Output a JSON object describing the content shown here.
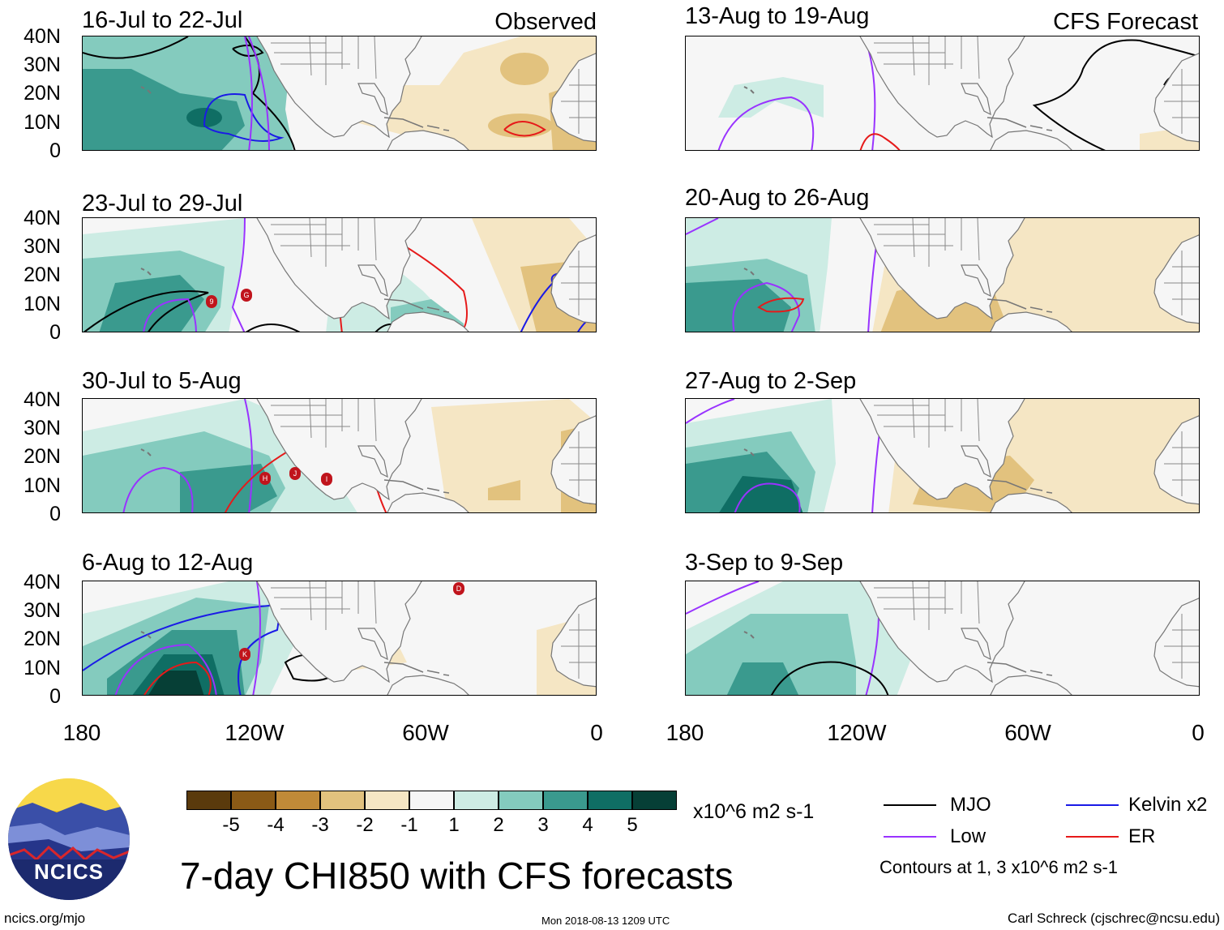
{
  "panels_left": [
    {
      "title": "16-Jul to 22-Jul",
      "corner": "Observed",
      "storms": []
    },
    {
      "title": "23-Jul to 29-Jul",
      "corner": "",
      "storms": [
        "9",
        "G"
      ]
    },
    {
      "title": "30-Jul to 5-Aug",
      "corner": "",
      "storms": [
        "H",
        "J",
        "I"
      ]
    },
    {
      "title": "6-Aug to 12-Aug",
      "corner": "",
      "storms": [
        "K",
        "D"
      ]
    }
  ],
  "panels_right": [
    {
      "title": "13-Aug to 19-Aug",
      "corner": "CFS Forecast"
    },
    {
      "title": "20-Aug to 26-Aug",
      "corner": ""
    },
    {
      "title": "27-Aug to 2-Sep",
      "corner": ""
    },
    {
      "title": "3-Sep to 9-Sep",
      "corner": ""
    }
  ],
  "lat_labels": [
    "40N",
    "30N",
    "20N",
    "10N",
    "0"
  ],
  "lon_labels": [
    "180",
    "120W",
    "60W",
    "0"
  ],
  "colorbar": {
    "colors": [
      "#5a3a0c",
      "#8a5a16",
      "#c08a38",
      "#e2c27e",
      "#f5e6c4",
      "#f6f6f6",
      "#cdece4",
      "#84cbbe",
      "#3a9a8e",
      "#0f6e64",
      "#063f36"
    ],
    "labels": [
      "-5",
      "-4",
      "-3",
      "-2",
      "-1",
      "1",
      "2",
      "3",
      "4",
      "5"
    ],
    "units": "x10^6 m2 s-1"
  },
  "legend": {
    "mjo": "MJO",
    "kelvin": "Kelvin x2",
    "low": "Low",
    "er": "ER",
    "contours": "Contours at 1, 3 x10^6 m2 s-1",
    "colors": {
      "mjo": "#000000",
      "kelvin": "#1a1ae6",
      "low": "#9933ff",
      "er": "#e61a1a"
    }
  },
  "title": "7-day CHI850 with CFS forecasts",
  "logo_text": "NCICS",
  "footer": {
    "left": "ncics.org/mjo",
    "center": "Mon 2018-08-13 1209 UTC",
    "right": "Carl Schreck (cjschrec@ncsu.edu)"
  }
}
